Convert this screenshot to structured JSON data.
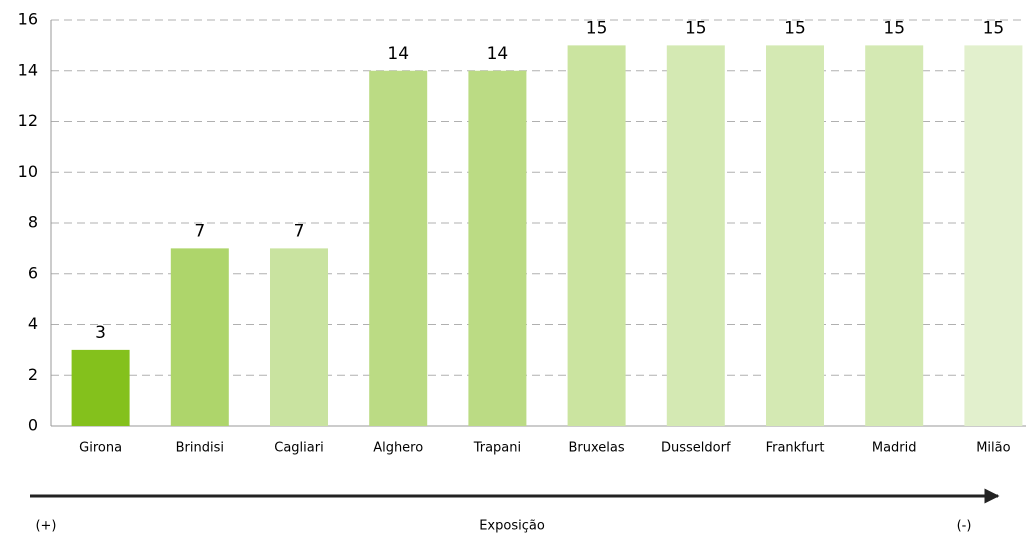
{
  "chart_data": {
    "type": "bar",
    "categories": [
      "Girona",
      "Brindisi",
      "Cagliari",
      "Alghero",
      "Trapani",
      "Bruxelas",
      "Dusseldorf",
      "Frankfurt",
      "Madrid",
      "Milão"
    ],
    "values": [
      3,
      7,
      7,
      14,
      14,
      15,
      15,
      15,
      15,
      15
    ],
    "colors": [
      "#84c11c",
      "#aed56b",
      "#c9e3a0",
      "#bbdb84",
      "#bbdb84",
      "#cbe4a0",
      "#d4e9b3",
      "#d4e9b3",
      "#d4e9b3",
      "#e2f0cd"
    ],
    "ylim": [
      0,
      16
    ],
    "yticks": [
      0,
      2,
      4,
      6,
      8,
      10,
      12,
      14,
      16
    ],
    "grid": true,
    "axis_arrow": {
      "start_label": "(+)",
      "label": "Exposição",
      "end_label": "(-)"
    }
  }
}
